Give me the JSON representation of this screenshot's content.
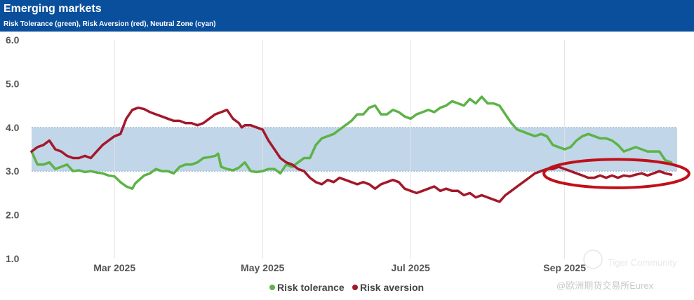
{
  "header": {
    "title": "Emerging markets",
    "subtitle": "Risk Tolerance (green), Risk Aversion (red), Neutral Zone (cyan)"
  },
  "watermark": {
    "brand": "Tiger Community",
    "source": "@欧洲期货交易所Eurex"
  },
  "colors": {
    "header_bg": "#0a4f9c",
    "tolerance": "#5cb346",
    "aversion": "#a3182a",
    "neutral_zone": "#c1d6e8",
    "highlight": "#c0101a"
  },
  "chart_data": {
    "type": "line",
    "title": "Emerging markets",
    "subtitle": "Risk Tolerance (green), Risk Aversion (red), Neutral Zone (cyan)",
    "xlabel": "",
    "ylabel": "",
    "ylim": [
      1.0,
      6.0
    ],
    "xlim": [
      0,
      218
    ],
    "y_ticks": [
      "6.0",
      "5.0",
      "4.0",
      "3.0",
      "2.0",
      "1.0"
    ],
    "y_tick_values": [
      6.0,
      5.0,
      4.0,
      3.0,
      2.0,
      1.0
    ],
    "x_ticks": [
      {
        "label": "Mar 2025",
        "value": 28
      },
      {
        "label": "May 2025",
        "value": 78
      },
      {
        "label": "Jul 2025",
        "value": 128
      },
      {
        "label": "Sep 2025",
        "value": 180
      }
    ],
    "neutral_zone": [
      3.0,
      4.0
    ],
    "grid": "vertical",
    "legend_position": "bottom",
    "series": [
      {
        "name": "Risk tolerance",
        "color": "#5cb346",
        "points": [
          [
            0,
            3.45
          ],
          [
            2,
            3.15
          ],
          [
            4,
            3.15
          ],
          [
            6,
            3.2
          ],
          [
            8,
            3.05
          ],
          [
            10,
            3.1
          ],
          [
            12,
            3.15
          ],
          [
            14,
            3.0
          ],
          [
            16,
            3.02
          ],
          [
            18,
            2.98
          ],
          [
            20,
            3.0
          ],
          [
            22,
            2.97
          ],
          [
            24,
            2.95
          ],
          [
            26,
            2.9
          ],
          [
            28,
            2.88
          ],
          [
            30,
            2.75
          ],
          [
            32,
            2.65
          ],
          [
            34,
            2.6
          ],
          [
            35,
            2.72
          ],
          [
            36,
            2.78
          ],
          [
            38,
            2.9
          ],
          [
            40,
            2.95
          ],
          [
            42,
            3.05
          ],
          [
            44,
            3.0
          ],
          [
            46,
            3.0
          ],
          [
            48,
            2.95
          ],
          [
            50,
            3.1
          ],
          [
            52,
            3.15
          ],
          [
            54,
            3.15
          ],
          [
            56,
            3.2
          ],
          [
            58,
            3.3
          ],
          [
            60,
            3.32
          ],
          [
            62,
            3.35
          ],
          [
            63,
            3.4
          ],
          [
            64,
            3.1
          ],
          [
            66,
            3.05
          ],
          [
            68,
            3.02
          ],
          [
            70,
            3.08
          ],
          [
            72,
            3.2
          ],
          [
            74,
            3.0
          ],
          [
            76,
            2.98
          ],
          [
            78,
            3.0
          ],
          [
            80,
            3.05
          ],
          [
            82,
            3.05
          ],
          [
            84,
            2.95
          ],
          [
            86,
            3.15
          ],
          [
            88,
            3.1
          ],
          [
            90,
            3.2
          ],
          [
            92,
            3.3
          ],
          [
            94,
            3.3
          ],
          [
            96,
            3.6
          ],
          [
            98,
            3.75
          ],
          [
            100,
            3.8
          ],
          [
            102,
            3.85
          ],
          [
            104,
            3.95
          ],
          [
            106,
            4.05
          ],
          [
            108,
            4.15
          ],
          [
            110,
            4.3
          ],
          [
            112,
            4.3
          ],
          [
            114,
            4.45
          ],
          [
            116,
            4.5
          ],
          [
            118,
            4.3
          ],
          [
            120,
            4.3
          ],
          [
            122,
            4.4
          ],
          [
            124,
            4.35
          ],
          [
            126,
            4.25
          ],
          [
            128,
            4.2
          ],
          [
            130,
            4.3
          ],
          [
            132,
            4.35
          ],
          [
            134,
            4.4
          ],
          [
            136,
            4.35
          ],
          [
            138,
            4.45
          ],
          [
            140,
            4.5
          ],
          [
            142,
            4.6
          ],
          [
            144,
            4.55
          ],
          [
            146,
            4.5
          ],
          [
            148,
            4.65
          ],
          [
            150,
            4.55
          ],
          [
            152,
            4.7
          ],
          [
            154,
            4.55
          ],
          [
            156,
            4.55
          ],
          [
            158,
            4.5
          ],
          [
            160,
            4.3
          ],
          [
            162,
            4.1
          ],
          [
            164,
            3.95
          ],
          [
            166,
            3.9
          ],
          [
            168,
            3.85
          ],
          [
            170,
            3.8
          ],
          [
            172,
            3.85
          ],
          [
            174,
            3.8
          ],
          [
            176,
            3.6
          ],
          [
            178,
            3.55
          ],
          [
            180,
            3.5
          ],
          [
            182,
            3.55
          ],
          [
            184,
            3.7
          ],
          [
            186,
            3.8
          ],
          [
            188,
            3.85
          ],
          [
            190,
            3.8
          ],
          [
            192,
            3.75
          ],
          [
            194,
            3.75
          ],
          [
            196,
            3.7
          ],
          [
            198,
            3.6
          ],
          [
            200,
            3.45
          ],
          [
            202,
            3.5
          ],
          [
            204,
            3.55
          ],
          [
            206,
            3.5
          ],
          [
            208,
            3.45
          ],
          [
            210,
            3.45
          ],
          [
            212,
            3.45
          ],
          [
            214,
            3.25
          ],
          [
            216,
            3.2
          ]
        ]
      },
      {
        "name": "Risk aversion",
        "color": "#a3182a",
        "points": [
          [
            0,
            3.45
          ],
          [
            2,
            3.55
          ],
          [
            4,
            3.6
          ],
          [
            6,
            3.7
          ],
          [
            8,
            3.5
          ],
          [
            10,
            3.45
          ],
          [
            12,
            3.35
          ],
          [
            14,
            3.3
          ],
          [
            16,
            3.3
          ],
          [
            18,
            3.35
          ],
          [
            20,
            3.3
          ],
          [
            22,
            3.45
          ],
          [
            24,
            3.6
          ],
          [
            26,
            3.7
          ],
          [
            28,
            3.8
          ],
          [
            30,
            3.85
          ],
          [
            32,
            4.2
          ],
          [
            34,
            4.4
          ],
          [
            36,
            4.45
          ],
          [
            38,
            4.42
          ],
          [
            40,
            4.35
          ],
          [
            42,
            4.3
          ],
          [
            44,
            4.25
          ],
          [
            46,
            4.2
          ],
          [
            48,
            4.15
          ],
          [
            50,
            4.15
          ],
          [
            52,
            4.1
          ],
          [
            54,
            4.1
          ],
          [
            56,
            4.05
          ],
          [
            58,
            4.1
          ],
          [
            60,
            4.2
          ],
          [
            62,
            4.3
          ],
          [
            64,
            4.35
          ],
          [
            66,
            4.4
          ],
          [
            68,
            4.2
          ],
          [
            70,
            4.1
          ],
          [
            71,
            4.0
          ],
          [
            72,
            4.05
          ],
          [
            74,
            4.05
          ],
          [
            76,
            4.0
          ],
          [
            78,
            3.95
          ],
          [
            80,
            3.7
          ],
          [
            82,
            3.5
          ],
          [
            84,
            3.3
          ],
          [
            86,
            3.2
          ],
          [
            88,
            3.15
          ],
          [
            90,
            3.05
          ],
          [
            92,
            3.0
          ],
          [
            94,
            2.85
          ],
          [
            96,
            2.75
          ],
          [
            98,
            2.7
          ],
          [
            100,
            2.8
          ],
          [
            102,
            2.75
          ],
          [
            104,
            2.85
          ],
          [
            106,
            2.8
          ],
          [
            108,
            2.75
          ],
          [
            110,
            2.7
          ],
          [
            112,
            2.75
          ],
          [
            114,
            2.7
          ],
          [
            116,
            2.6
          ],
          [
            118,
            2.7
          ],
          [
            120,
            2.75
          ],
          [
            122,
            2.8
          ],
          [
            124,
            2.75
          ],
          [
            126,
            2.6
          ],
          [
            128,
            2.55
          ],
          [
            130,
            2.5
          ],
          [
            132,
            2.55
          ],
          [
            134,
            2.6
          ],
          [
            136,
            2.65
          ],
          [
            138,
            2.55
          ],
          [
            140,
            2.6
          ],
          [
            142,
            2.55
          ],
          [
            144,
            2.55
          ],
          [
            146,
            2.45
          ],
          [
            148,
            2.5
          ],
          [
            150,
            2.4
          ],
          [
            152,
            2.45
          ],
          [
            154,
            2.4
          ],
          [
            156,
            2.35
          ],
          [
            158,
            2.3
          ],
          [
            160,
            2.45
          ],
          [
            162,
            2.55
          ],
          [
            164,
            2.65
          ],
          [
            166,
            2.75
          ],
          [
            168,
            2.85
          ],
          [
            170,
            2.95
          ],
          [
            172,
            3.0
          ],
          [
            174,
            3.05
          ],
          [
            176,
            3.05
          ],
          [
            178,
            3.1
          ],
          [
            180,
            3.05
          ],
          [
            182,
            3.0
          ],
          [
            184,
            2.95
          ],
          [
            186,
            2.9
          ],
          [
            188,
            2.85
          ],
          [
            190,
            2.85
          ],
          [
            192,
            2.9
          ],
          [
            194,
            2.85
          ],
          [
            196,
            2.9
          ],
          [
            198,
            2.85
          ],
          [
            200,
            2.9
          ],
          [
            202,
            2.88
          ],
          [
            204,
            2.92
          ],
          [
            206,
            2.95
          ],
          [
            208,
            2.9
          ],
          [
            210,
            2.95
          ],
          [
            212,
            3.0
          ],
          [
            214,
            2.95
          ],
          [
            216,
            2.92
          ]
        ]
      }
    ],
    "annotations": [
      {
        "type": "ellipse",
        "color": "#c0101a",
        "x_range": [
          173,
          222
        ],
        "y_range": [
          2.62,
          3.27
        ]
      }
    ]
  }
}
